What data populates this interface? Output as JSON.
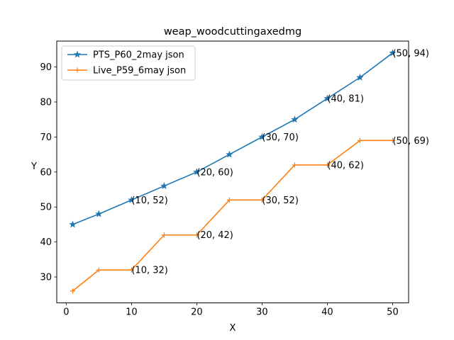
{
  "chart_data": {
    "type": "line",
    "title": "weap_woodcuttingaxedmg",
    "xlabel": "X",
    "ylabel": "Y",
    "xlim": [
      -1.45,
      52.45
    ],
    "ylim": [
      22.6,
      97.4
    ],
    "xticks": [
      0,
      10,
      20,
      30,
      40,
      50
    ],
    "yticks": [
      30,
      40,
      50,
      60,
      70,
      80,
      90
    ],
    "grid": false,
    "legend_position": "top-left",
    "series": [
      {
        "name": "PTS_P60_2may json",
        "color": "#1f77b4",
        "marker": "star",
        "x": [
          1,
          5,
          10,
          15,
          20,
          25,
          30,
          35,
          40,
          45,
          50
        ],
        "y": [
          45,
          48,
          52,
          56,
          60,
          65,
          70,
          75,
          81,
          87,
          94
        ]
      },
      {
        "name": "Live_P59_6may json",
        "color": "#ff7f0e",
        "marker": "plus",
        "x": [
          1,
          5,
          10,
          15,
          20,
          25,
          30,
          35,
          40,
          45,
          50
        ],
        "y": [
          26,
          32,
          32,
          42,
          42,
          52,
          52,
          62,
          62,
          69,
          69
        ]
      }
    ],
    "annotations": [
      {
        "text": "(10, 52)",
        "x": 10,
        "y": 52,
        "series": 0
      },
      {
        "text": "(20, 60)",
        "x": 20,
        "y": 60,
        "series": 0
      },
      {
        "text": "(30, 70)",
        "x": 30,
        "y": 70,
        "series": 0
      },
      {
        "text": "(40, 81)",
        "x": 40,
        "y": 81,
        "series": 0
      },
      {
        "text": "(50, 94)",
        "x": 50,
        "y": 94,
        "series": 0
      },
      {
        "text": "(10, 32)",
        "x": 10,
        "y": 32,
        "series": 1
      },
      {
        "text": "(20, 42)",
        "x": 20,
        "y": 42,
        "series": 1
      },
      {
        "text": "(30, 52)",
        "x": 30,
        "y": 52,
        "series": 1
      },
      {
        "text": "(40, 62)",
        "x": 40,
        "y": 62,
        "series": 1
      },
      {
        "text": "(50, 69)",
        "x": 50,
        "y": 69,
        "series": 1
      }
    ]
  }
}
